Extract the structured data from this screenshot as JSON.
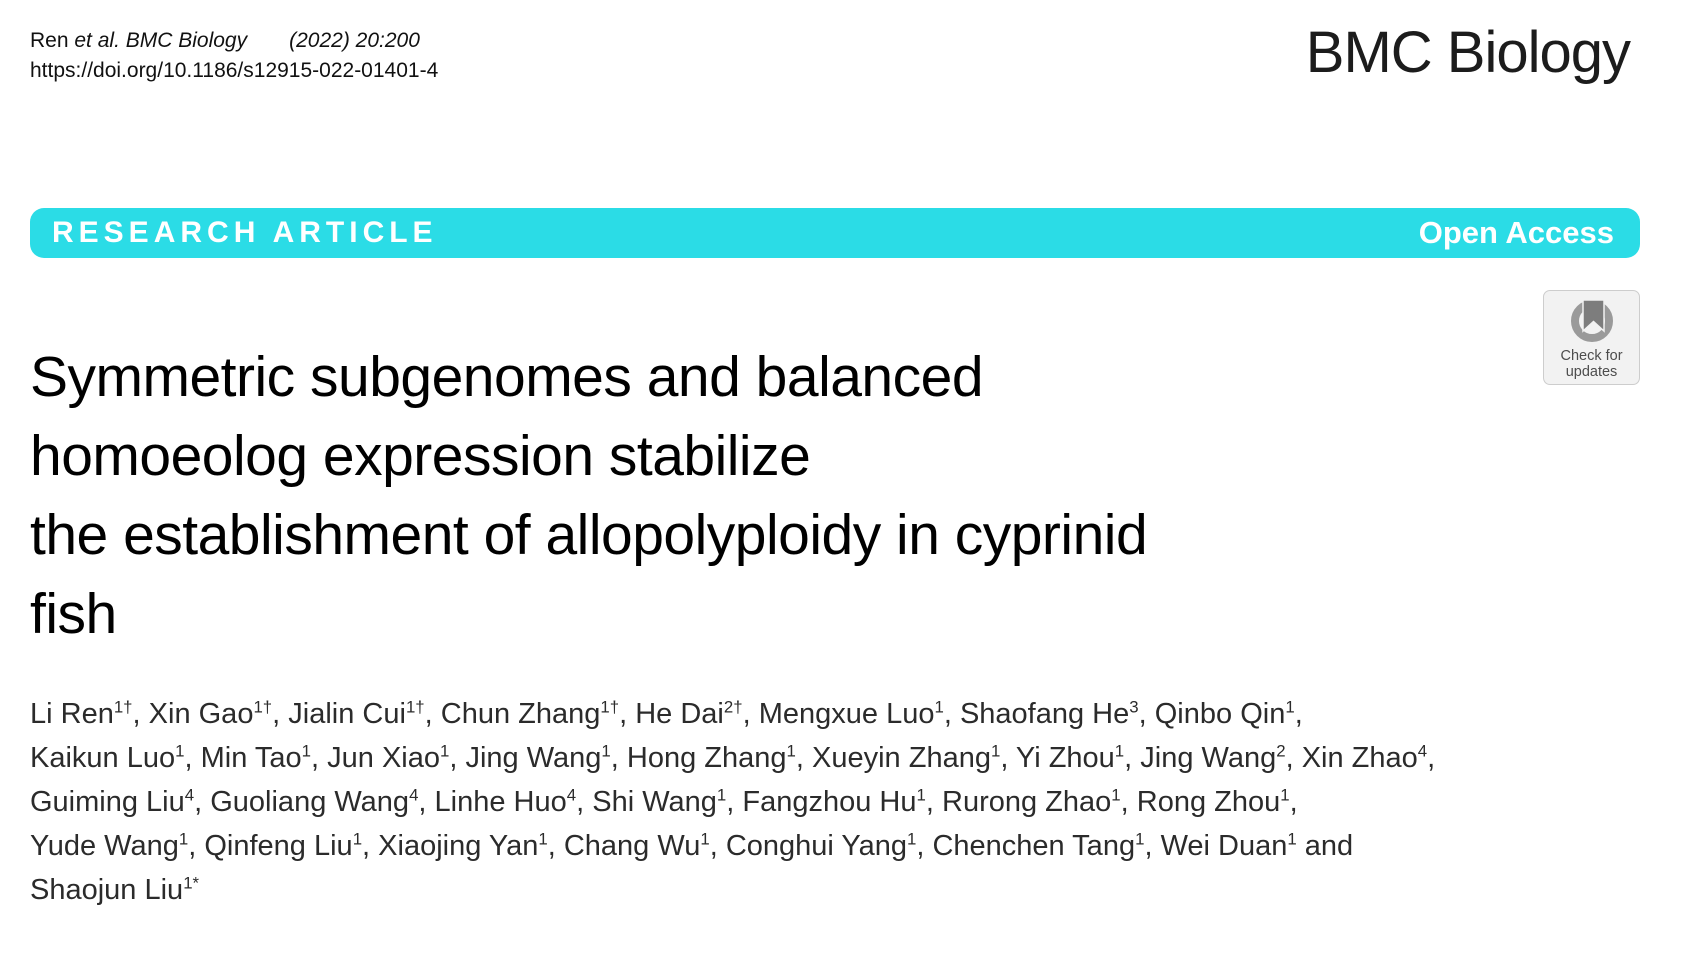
{
  "header": {
    "cite_name": "Ren",
    "cite_etal": "et al. BMC Biology",
    "cite_info": "(2022) 20:200",
    "doi": "https://doi.org/10.1186/s12915-022-01401-4",
    "journal_logo": "BMC Biology"
  },
  "banner": {
    "label": "RESEARCH ARTICLE",
    "access": "Open Access",
    "color": "#2bdce6"
  },
  "check_badge": {
    "line1": "Check for",
    "line2": "updates",
    "icon": "crossmark-bookmark-icon",
    "ring_color": "#9a9a9a",
    "bookmark_color": "#7d7d7d"
  },
  "article": {
    "title_lines": [
      "Symmetric subgenomes and balanced",
      "homoeolog expression stabilize",
      "the establishment of allopolyploidy in cyprinid",
      "fish"
    ],
    "author_lines": [
      [
        {
          "name": "Li Ren",
          "sup": "1†",
          "sep": ", "
        },
        {
          "name": "Xin Gao",
          "sup": "1†",
          "sep": ", "
        },
        {
          "name": "Jialin Cui",
          "sup": "1†",
          "sep": ", "
        },
        {
          "name": "Chun Zhang",
          "sup": "1†",
          "sep": ", "
        },
        {
          "name": "He Dai",
          "sup": "2†",
          "sep": ", "
        },
        {
          "name": "Mengxue Luo",
          "sup": "1",
          "sep": ", "
        },
        {
          "name": "Shaofang He",
          "sup": "3",
          "sep": ", "
        },
        {
          "name": "Qinbo Qin",
          "sup": "1",
          "sep": ","
        }
      ],
      [
        {
          "name": "Kaikun Luo",
          "sup": "1",
          "sep": ", "
        },
        {
          "name": "Min Tao",
          "sup": "1",
          "sep": ", "
        },
        {
          "name": "Jun Xiao",
          "sup": "1",
          "sep": ", "
        },
        {
          "name": "Jing Wang",
          "sup": "1",
          "sep": ", "
        },
        {
          "name": "Hong Zhang",
          "sup": "1",
          "sep": ", "
        },
        {
          "name": "Xueyin Zhang",
          "sup": "1",
          "sep": ", "
        },
        {
          "name": "Yi Zhou",
          "sup": "1",
          "sep": ", "
        },
        {
          "name": "Jing Wang",
          "sup": "2",
          "sep": ", "
        },
        {
          "name": "Xin Zhao",
          "sup": "4",
          "sep": ","
        }
      ],
      [
        {
          "name": "Guiming Liu",
          "sup": "4",
          "sep": ", "
        },
        {
          "name": "Guoliang Wang",
          "sup": "4",
          "sep": ", "
        },
        {
          "name": "Linhe Huo",
          "sup": "4",
          "sep": ", "
        },
        {
          "name": "Shi Wang",
          "sup": "1",
          "sep": ", "
        },
        {
          "name": "Fangzhou Hu",
          "sup": "1",
          "sep": ", "
        },
        {
          "name": "Rurong Zhao",
          "sup": "1",
          "sep": ", "
        },
        {
          "name": "Rong Zhou",
          "sup": "1",
          "sep": ","
        }
      ],
      [
        {
          "name": "Yude Wang",
          "sup": "1",
          "sep": ", "
        },
        {
          "name": "Qinfeng Liu",
          "sup": "1",
          "sep": ", "
        },
        {
          "name": "Xiaojing Yan",
          "sup": "1",
          "sep": ", "
        },
        {
          "name": "Chang Wu",
          "sup": "1",
          "sep": ", "
        },
        {
          "name": "Conghui Yang",
          "sup": "1",
          "sep": ", "
        },
        {
          "name": "Chenchen Tang",
          "sup": "1",
          "sep": ", "
        },
        {
          "name": "Wei Duan",
          "sup": "1",
          "sep": " and"
        }
      ],
      [
        {
          "name": "Shaojun Liu",
          "sup": "1*",
          "sep": ""
        }
      ]
    ]
  }
}
